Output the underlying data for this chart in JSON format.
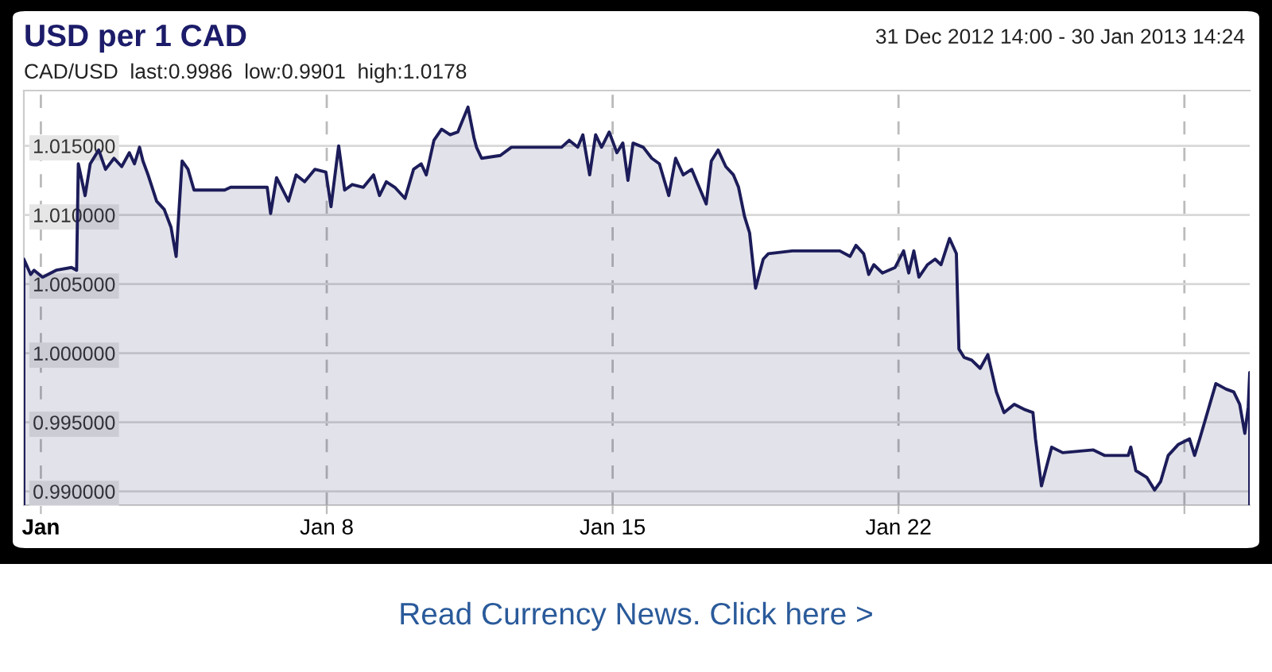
{
  "chart_data": {
    "type": "area",
    "title": "USD per 1 CAD",
    "subtitle": "31 Dec 2012 14:00 - 30 Jan 2013 14:24",
    "annotations": [
      "CAD/USD  last:0.9986  low:0.9901  high:1.0178",
      "Read Currency News. Click here >"
    ],
    "x": [
      "2012-12-31T14:00",
      "2012-12-31T18:00",
      "2012-12-31T20:00",
      "2013-01-01T01:00",
      "2013-01-01T09:00",
      "2013-01-01T18:00",
      "2013-01-01T21:00",
      "2013-01-01T22:00",
      "2013-01-02T02:00",
      "2013-01-02T05:00",
      "2013-01-02T10:00",
      "2013-01-02T14:00",
      "2013-01-02T19:00",
      "2013-01-02T23:30",
      "2013-01-03T04:00",
      "2013-01-03T07:00",
      "2013-01-03T10:00",
      "2013-01-03T12:00",
      "2013-01-03T15:00",
      "2013-01-03T20:00",
      "2013-01-04T00:30",
      "2013-01-04T04:30",
      "2013-01-04T07:30",
      "2013-01-04T11:00",
      "2013-01-04T14:30",
      "2013-01-04T18:00",
      "2013-01-05T12:00",
      "2013-01-05T15:30",
      "2013-01-06T13:00",
      "2013-01-06T15:00",
      "2013-01-06T18:30",
      "2013-01-07T01:30",
      "2013-01-07T06:00",
      "2013-01-07T11:00",
      "2013-01-07T17:00",
      "2013-01-07T23:30",
      "2013-01-08T02:30",
      "2013-01-08T07:00",
      "2013-01-08T10:30",
      "2013-01-08T15:00",
      "2013-01-08T21:30",
      "2013-01-09T03:30",
      "2013-01-09T07:00",
      "2013-01-09T11:00",
      "2013-01-09T16:00",
      "2013-01-09T22:00",
      "2013-01-10T03:00",
      "2013-01-10T07:30",
      "2013-01-10T10:30",
      "2013-01-10T15:00",
      "2013-01-10T19:30",
      "2013-01-11T00:30",
      "2013-01-11T05:00",
      "2013-01-11T11:00",
      "2013-01-11T14:30",
      "2013-01-11T16:00",
      "2013-01-11T19:00",
      "2013-01-12T06:00",
      "2013-01-12T12:30",
      "2013-01-13T18:00",
      "2013-01-13T22:30",
      "2013-01-14T03:30",
      "2013-01-14T06:30",
      "2013-01-14T10:30",
      "2013-01-14T14:00",
      "2013-01-14T17:30",
      "2013-01-14T22:00",
      "2013-01-15T02:30",
      "2013-01-15T06:00",
      "2013-01-15T09:00",
      "2013-01-15T12:00",
      "2013-01-15T18:00",
      "2013-01-15T23:00",
      "2013-01-16T03:30",
      "2013-01-16T09:00",
      "2013-01-16T13:00",
      "2013-01-16T17:30",
      "2013-01-16T22:30",
      "2013-01-17T01:30",
      "2013-01-17T07:00",
      "2013-01-17T10:00",
      "2013-01-17T14:00",
      "2013-01-17T18:30",
      "2013-01-17T23:00",
      "2013-01-18T02:00",
      "2013-01-18T05:30",
      "2013-01-18T08:30",
      "2013-01-18T12:00",
      "2013-01-18T16:30",
      "2013-01-18T19:30",
      "2013-01-19T09:30",
      "2013-01-20T13:30",
      "2013-01-20T19:30",
      "2013-01-20T23:00",
      "2013-01-21T03:30",
      "2013-01-21T06:30",
      "2013-01-21T09:30",
      "2013-01-21T14:30",
      "2013-01-21T22:00",
      "2013-01-22T03:00",
      "2013-01-22T06:00",
      "2013-01-22T09:00",
      "2013-01-22T12:00",
      "2013-01-22T17:00",
      "2013-01-22T21:30",
      "2013-01-23T01:00",
      "2013-01-23T06:00",
      "2013-01-23T10:00",
      "2013-01-23T11:30",
      "2013-01-23T14:30",
      "2013-01-23T19:00",
      "2013-01-24T00:00",
      "2013-01-24T04:30",
      "2013-01-24T09:30",
      "2013-01-24T14:00",
      "2013-01-24T20:00",
      "2013-01-25T02:30",
      "2013-01-25T07:00",
      "2013-01-25T08:30",
      "2013-01-25T12:00",
      "2013-01-25T18:00",
      "2013-01-26T00:30",
      "2013-01-26T18:30",
      "2013-01-27T01:00",
      "2013-01-27T15:00",
      "2013-01-27T16:30",
      "2013-01-27T19:30",
      "2013-01-28T02:00",
      "2013-01-28T06:30",
      "2013-01-28T10:00",
      "2013-01-28T14:30",
      "2013-01-28T20:30",
      "2013-01-29T03:00",
      "2013-01-29T06:00",
      "2013-01-29T09:00",
      "2013-01-29T13:30",
      "2013-01-29T18:30",
      "2013-01-30T00:30",
      "2013-01-30T05:00",
      "2013-01-30T08:30",
      "2013-01-30T11:30",
      "2013-01-30T13:30",
      "2013-01-30T14:24"
    ],
    "series": [
      {
        "color": "#1c1c5a",
        "values": [
          1.0068,
          1.0057,
          1.006,
          1.0055,
          1.006,
          1.0062,
          1.006,
          1.0137,
          1.0114,
          1.0137,
          1.0147,
          1.0133,
          1.0141,
          1.0135,
          1.0145,
          1.0137,
          1.0149,
          1.0139,
          1.0129,
          1.011,
          1.0104,
          1.0091,
          1.007,
          1.0139,
          1.0133,
          1.0118,
          1.0118,
          1.012,
          1.012,
          1.0101,
          1.0127,
          1.011,
          1.0129,
          1.0124,
          1.0133,
          1.0131,
          1.0106,
          1.015,
          1.0118,
          1.0122,
          1.012,
          1.0129,
          1.0114,
          1.0124,
          1.012,
          1.0112,
          1.0133,
          1.0137,
          1.0129,
          1.0154,
          1.0162,
          1.0158,
          1.016,
          1.0178,
          1.0156,
          1.0149,
          1.0141,
          1.0143,
          1.0149,
          1.0149,
          1.0154,
          1.0149,
          1.0158,
          1.0129,
          1.0158,
          1.0149,
          1.016,
          1.0145,
          1.0152,
          1.0125,
          1.0152,
          1.0149,
          1.0141,
          1.0137,
          1.0114,
          1.0141,
          1.0129,
          1.0133,
          1.0124,
          1.0108,
          1.0139,
          1.0147,
          1.0135,
          1.0129,
          1.012,
          1.0099,
          1.0087,
          1.0047,
          1.0068,
          1.0072,
          1.0074,
          1.0074,
          1.007,
          1.0078,
          1.0072,
          1.0057,
          1.0064,
          1.0058,
          1.0062,
          1.0074,
          1.0058,
          1.0074,
          1.0055,
          1.0064,
          1.0068,
          1.0064,
          1.0083,
          1.0072,
          1.0003,
          0.9997,
          0.9995,
          0.9989,
          0.9999,
          0.9972,
          0.9957,
          0.9963,
          0.9959,
          0.9957,
          0.9938,
          0.9904,
          0.9932,
          0.9928,
          0.993,
          0.9926,
          0.9926,
          0.9932,
          0.9915,
          0.991,
          0.9901,
          0.9907,
          0.9926,
          0.9934,
          0.9938,
          0.9926,
          0.9938,
          0.9957,
          0.9978,
          0.9974,
          0.9972,
          0.9963,
          0.9942,
          0.9961,
          0.9986
        ]
      }
    ],
    "xlim": [
      "2012-12-31T14:00",
      "2013-01-30T14:24"
    ],
    "xticks": [
      {
        "value": "2013-01-01",
        "label": "Jan"
      },
      {
        "value": "2013-01-08",
        "label": "Jan 8"
      },
      {
        "value": "2013-01-15",
        "label": "Jan 15"
      },
      {
        "value": "2013-01-22",
        "label": "Jan 22"
      },
      {
        "value": "2013-01-29",
        "label": null
      }
    ],
    "ylim": [
      0.989,
      1.019
    ],
    "yticks": [
      {
        "value": 0.99,
        "label": "0.990000"
      },
      {
        "value": 0.995,
        "label": "0.995000"
      },
      {
        "value": 1.0,
        "label": "1.000000"
      },
      {
        "value": 1.005,
        "label": "1.005000"
      },
      {
        "value": 1.01,
        "label": "1.010000"
      },
      {
        "value": 1.015,
        "label": "1.015000"
      }
    ],
    "grid": true
  }
}
